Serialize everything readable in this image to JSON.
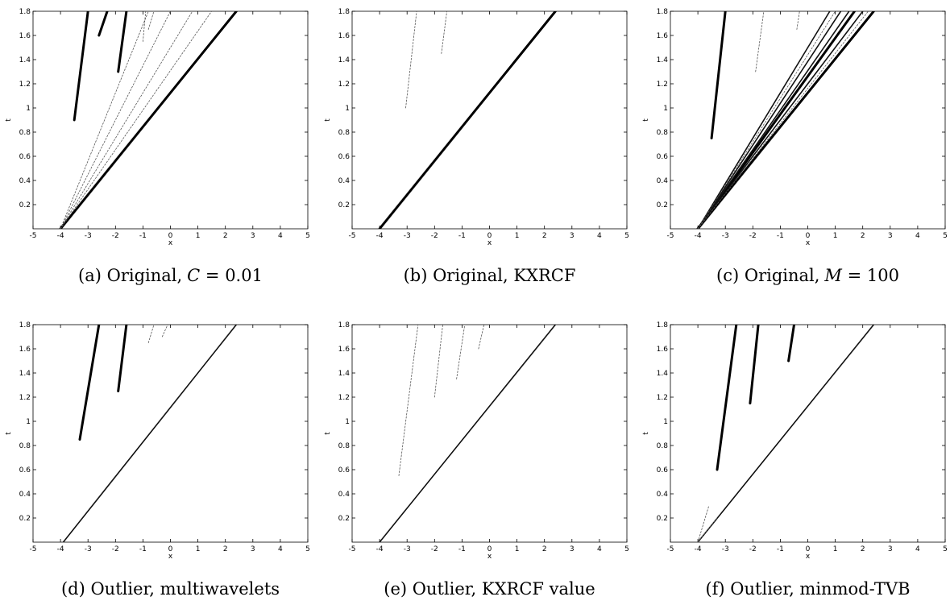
{
  "chart_data": [
    {
      "type": "scatter",
      "caption": "(a) Original,",
      "caption_math": "C = 0.01",
      "xlabel": "x",
      "ylabel": "t",
      "xlim": [
        -5,
        5
      ],
      "ylim": [
        0,
        1.8
      ],
      "xticks": [
        "-5",
        "-4",
        "-3",
        "-2",
        "-1",
        "0",
        "1",
        "2",
        "3",
        "4",
        "5"
      ],
      "yticks": [
        "0.2",
        "0.4",
        "0.6",
        "0.8",
        "1",
        "1.2",
        "1.4",
        "1.6",
        "1.8"
      ],
      "series": [
        {
          "style": "heavy",
          "points": [
            [
              -4.0,
              0.0
            ],
            [
              2.4,
              1.8
            ]
          ]
        },
        {
          "style": "heavy",
          "points": [
            [
              -3.5,
              0.9
            ],
            [
              -3.0,
              1.8
            ]
          ]
        },
        {
          "style": "heavy",
          "points": [
            [
              -2.6,
              1.6
            ],
            [
              -2.3,
              1.8
            ]
          ]
        },
        {
          "style": "heavy",
          "points": [
            [
              -1.9,
              1.3
            ],
            [
              -1.6,
              1.8
            ]
          ]
        },
        {
          "style": "light",
          "points": [
            [
              -4.0,
              0.0
            ],
            [
              1.5,
              1.8
            ]
          ]
        },
        {
          "style": "light",
          "points": [
            [
              -4.0,
              0.0
            ],
            [
              0.8,
              1.8
            ]
          ]
        },
        {
          "style": "light",
          "points": [
            [
              -4.0,
              0.0
            ],
            [
              0.0,
              1.8
            ]
          ]
        },
        {
          "style": "light",
          "points": [
            [
              -4.0,
              0.0
            ],
            [
              -0.8,
              1.8
            ]
          ]
        },
        {
          "style": "light",
          "points": [
            [
              -0.8,
              1.65
            ],
            [
              -0.6,
              1.8
            ]
          ]
        },
        {
          "style": "light",
          "points": [
            [
              -1.0,
              1.55
            ],
            [
              -0.9,
              1.8
            ]
          ]
        }
      ]
    },
    {
      "type": "scatter",
      "caption": "(b) Original, KXRCF",
      "caption_math": "",
      "xlabel": "x",
      "ylabel": "t",
      "xlim": [
        -5,
        5
      ],
      "ylim": [
        0,
        1.8
      ],
      "xticks": [
        "-5",
        "-4",
        "-3",
        "-2",
        "-1",
        "0",
        "1",
        "2",
        "3",
        "4",
        "5"
      ],
      "yticks": [
        "0.2",
        "0.4",
        "0.6",
        "0.8",
        "1",
        "1.2",
        "1.4",
        "1.6",
        "1.8"
      ],
      "series": [
        {
          "style": "heavy",
          "points": [
            [
              -4.0,
              0.0
            ],
            [
              2.4,
              1.8
            ]
          ]
        },
        {
          "style": "light",
          "points": [
            [
              -3.05,
              1.0
            ],
            [
              -2.65,
              1.8
            ]
          ]
        },
        {
          "style": "light",
          "points": [
            [
              -1.75,
              1.45
            ],
            [
              -1.55,
              1.8
            ]
          ]
        }
      ]
    },
    {
      "type": "scatter",
      "caption": "(c) Original,",
      "caption_math": "M = 100",
      "xlabel": "x",
      "ylabel": "t",
      "xlim": [
        -5,
        5
      ],
      "ylim": [
        0,
        1.8
      ],
      "xticks": [
        "-5",
        "-4",
        "-3",
        "-2",
        "-1",
        "0",
        "1",
        "2",
        "3",
        "4",
        "5"
      ],
      "yticks": [
        "0.2",
        "0.4",
        "0.6",
        "0.8",
        "1",
        "1.2",
        "1.4",
        "1.6",
        "1.8"
      ],
      "series": [
        {
          "style": "heavy",
          "points": [
            [
              -4.0,
              0.0
            ],
            [
              2.4,
              1.8
            ]
          ]
        },
        {
          "style": "heavy",
          "points": [
            [
              -4.0,
              0.0
            ],
            [
              1.7,
              1.8
            ]
          ]
        },
        {
          "style": "medium",
          "points": [
            [
              -4.0,
              0.0
            ],
            [
              1.2,
              1.8
            ]
          ]
        },
        {
          "style": "medium",
          "points": [
            [
              -4.0,
              0.0
            ],
            [
              1.5,
              1.8
            ]
          ]
        },
        {
          "style": "medium",
          "points": [
            [
              -4.0,
              0.0
            ],
            [
              0.8,
              1.8
            ]
          ]
        },
        {
          "style": "medium",
          "points": [
            [
              -4.0,
              0.0
            ],
            [
              2.0,
              1.8
            ]
          ]
        },
        {
          "style": "light",
          "points": [
            [
              -4.0,
              0.0
            ],
            [
              2.2,
              1.8
            ]
          ]
        },
        {
          "style": "light",
          "points": [
            [
              -4.0,
              0.0
            ],
            [
              1.0,
              1.8
            ]
          ]
        },
        {
          "style": "heavy",
          "points": [
            [
              -3.5,
              0.75
            ],
            [
              -3.0,
              1.8
            ]
          ]
        },
        {
          "style": "light",
          "points": [
            [
              -1.9,
              1.3
            ],
            [
              -1.6,
              1.8
            ]
          ]
        },
        {
          "style": "light",
          "points": [
            [
              -0.4,
              1.65
            ],
            [
              -0.3,
              1.8
            ]
          ]
        }
      ]
    },
    {
      "type": "scatter",
      "caption": "(d) Outlier, multiwavelets",
      "caption_math": "",
      "xlabel": "x",
      "ylabel": "t",
      "xlim": [
        -5,
        5
      ],
      "ylim": [
        0,
        1.8
      ],
      "xticks": [
        "-5",
        "-4",
        "-3",
        "-2",
        "-1",
        "0",
        "1",
        "2",
        "3",
        "4",
        "5"
      ],
      "yticks": [
        "0.2",
        "0.4",
        "0.6",
        "0.8",
        "1",
        "1.2",
        "1.4",
        "1.6",
        "1.8"
      ],
      "series": [
        {
          "style": "medium",
          "points": [
            [
              -3.9,
              0.0
            ],
            [
              2.4,
              1.8
            ]
          ]
        },
        {
          "style": "heavy",
          "points": [
            [
              -3.3,
              0.85
            ],
            [
              -2.6,
              1.8
            ]
          ]
        },
        {
          "style": "heavy",
          "points": [
            [
              -1.9,
              1.25
            ],
            [
              -1.6,
              1.8
            ]
          ]
        },
        {
          "style": "light",
          "points": [
            [
              -0.8,
              1.65
            ],
            [
              -0.6,
              1.8
            ]
          ]
        },
        {
          "style": "light",
          "points": [
            [
              -0.3,
              1.7
            ],
            [
              -0.1,
              1.8
            ]
          ]
        }
      ]
    },
    {
      "type": "scatter",
      "caption": "(e) Outlier, KXRCF value",
      "caption_math": "",
      "xlabel": "x",
      "ylabel": "t",
      "xlim": [
        -5,
        5
      ],
      "ylim": [
        0,
        1.8
      ],
      "xticks": [
        "-5",
        "-4",
        "-3",
        "-2",
        "-1",
        "0",
        "1",
        "2",
        "3",
        "4",
        "5"
      ],
      "yticks": [
        "0.2",
        "0.4",
        "0.6",
        "0.8",
        "1",
        "1.2",
        "1.4",
        "1.6",
        "1.8"
      ],
      "series": [
        {
          "style": "medium",
          "points": [
            [
              -4.0,
              0.0
            ],
            [
              2.4,
              1.8
            ]
          ]
        },
        {
          "style": "light",
          "points": [
            [
              -3.3,
              0.55
            ],
            [
              -2.6,
              1.8
            ]
          ]
        },
        {
          "style": "light",
          "points": [
            [
              -2.0,
              1.2
            ],
            [
              -1.7,
              1.8
            ]
          ]
        },
        {
          "style": "light",
          "points": [
            [
              -1.2,
              1.35
            ],
            [
              -0.9,
              1.8
            ]
          ]
        },
        {
          "style": "light",
          "points": [
            [
              -0.4,
              1.6
            ],
            [
              -0.2,
              1.8
            ]
          ]
        }
      ]
    },
    {
      "type": "scatter",
      "caption": "(f) Outlier, minmod-TVB",
      "caption_math": "",
      "xlabel": "x",
      "ylabel": "t",
      "xlim": [
        -5,
        5
      ],
      "ylim": [
        0,
        1.8
      ],
      "xticks": [
        "-5",
        "-4",
        "-3",
        "-2",
        "-1",
        "0",
        "1",
        "2",
        "3",
        "4",
        "5"
      ],
      "yticks": [
        "0.2",
        "0.4",
        "0.6",
        "0.8",
        "1",
        "1.2",
        "1.4",
        "1.6",
        "1.8"
      ],
      "series": [
        {
          "style": "medium",
          "points": [
            [
              -4.0,
              0.0
            ],
            [
              2.4,
              1.8
            ]
          ]
        },
        {
          "style": "heavy",
          "points": [
            [
              -3.3,
              0.6
            ],
            [
              -2.6,
              1.8
            ]
          ]
        },
        {
          "style": "heavy",
          "points": [
            [
              -2.1,
              1.15
            ],
            [
              -1.8,
              1.8
            ]
          ]
        },
        {
          "style": "heavy",
          "points": [
            [
              -0.7,
              1.5
            ],
            [
              -0.5,
              1.8
            ]
          ]
        },
        {
          "style": "light",
          "points": [
            [
              -4.0,
              0.0
            ],
            [
              -3.6,
              0.3
            ]
          ]
        },
        {
          "style": "light",
          "points": [
            [
              -4.0,
              0.0
            ],
            [
              -3.3,
              0.2
            ]
          ]
        }
      ]
    }
  ]
}
